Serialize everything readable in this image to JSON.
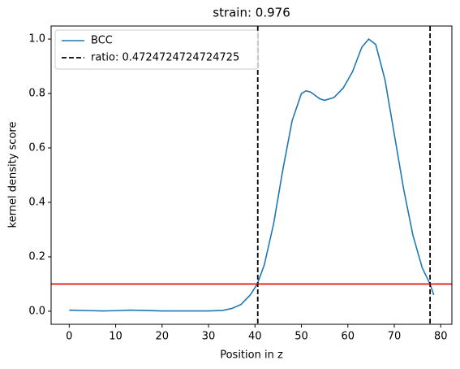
{
  "chart_data": {
    "type": "line",
    "title": "strain: 0.976",
    "xlabel": "Position in z",
    "ylabel": "kernel density score",
    "x": [
      0,
      5,
      7,
      10,
      13,
      16,
      20,
      25,
      30,
      33,
      35,
      37,
      39,
      40.5,
      42,
      44,
      46,
      48,
      50,
      51,
      52,
      54,
      55,
      57,
      59,
      61,
      63,
      64.5,
      66,
      68,
      70,
      72,
      74,
      76,
      77.7,
      78.5
    ],
    "series": [
      {
        "name": "BCC",
        "color": "#1f77b4",
        "values": [
          0.004,
          0.002,
          0.001,
          0.002,
          0.004,
          0.003,
          0.001,
          0.001,
          0.001,
          0.003,
          0.01,
          0.025,
          0.06,
          0.1,
          0.17,
          0.32,
          0.52,
          0.7,
          0.8,
          0.81,
          0.805,
          0.78,
          0.775,
          0.785,
          0.82,
          0.88,
          0.97,
          1.0,
          0.98,
          0.85,
          0.65,
          0.45,
          0.28,
          0.16,
          0.1,
          0.06
        ]
      }
    ],
    "vlines": {
      "name": "ratio: 0.4724724724724725",
      "color": "#000000",
      "values": [
        40.6,
        77.7
      ]
    },
    "hline": {
      "value": 0.1,
      "color": "#e00000"
    },
    "xlim": [
      -3.9,
      82.4
    ],
    "ylim": [
      -0.048,
      1.048
    ],
    "xticks": [
      0,
      10,
      20,
      30,
      40,
      50,
      60,
      70,
      80
    ],
    "yticks": [
      {
        "value": 0,
        "label": "0.0"
      },
      0.2,
      0.4,
      0.6,
      0.8,
      {
        "value": 1,
        "label": "1.0"
      }
    ],
    "legend": "upper left"
  }
}
